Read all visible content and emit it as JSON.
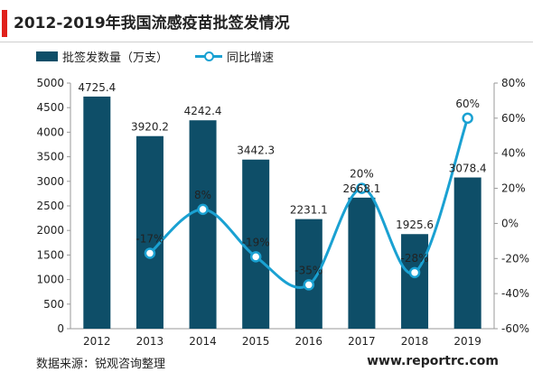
{
  "header": {
    "title": "2012-2019年我国流感疫苗批签发情况"
  },
  "footer": {
    "source": "数据来源：锐观咨询整理",
    "site": "www.reportrc.com"
  },
  "colors": {
    "bar": "#0e4e68",
    "line": "#1aa1d2",
    "accent": "#e0201b"
  },
  "chart_data": {
    "type": "bar",
    "categories": [
      "2012",
      "2013",
      "2014",
      "2015",
      "2016",
      "2017",
      "2018",
      "2019"
    ],
    "series": [
      {
        "name": "批签发数量（万支）",
        "type": "bar",
        "axis": "left",
        "values": [
          4725.4,
          3920.2,
          4242.4,
          3442.3,
          2231.1,
          2668.1,
          1925.6,
          3078.4
        ],
        "labels": [
          "4725.4",
          "3920.2",
          "4242.4",
          "3442.3",
          "2231.1",
          "2668.1",
          "1925.6",
          "3078.4"
        ]
      },
      {
        "name": "同比增速",
        "type": "line",
        "axis": "right",
        "values": [
          null,
          -17,
          8,
          -19,
          -35,
          20,
          -28,
          60
        ],
        "labels": [
          "",
          "-17%",
          "8%",
          "-19%",
          "-35%",
          "20%",
          "-28%",
          "60%"
        ]
      }
    ],
    "left_axis": {
      "min": 0,
      "max": 5000,
      "step": 500,
      "ticks": [
        "0",
        "500",
        "1000",
        "1500",
        "2000",
        "2500",
        "3000",
        "3500",
        "4000",
        "4500",
        "5000"
      ]
    },
    "right_axis": {
      "min": -60,
      "max": 80,
      "step": 20,
      "ticks": [
        "-60%",
        "-40%",
        "-20%",
        "0%",
        "20%",
        "40%",
        "60%",
        "80%"
      ]
    },
    "legend_position": "top-left",
    "grid": false
  }
}
